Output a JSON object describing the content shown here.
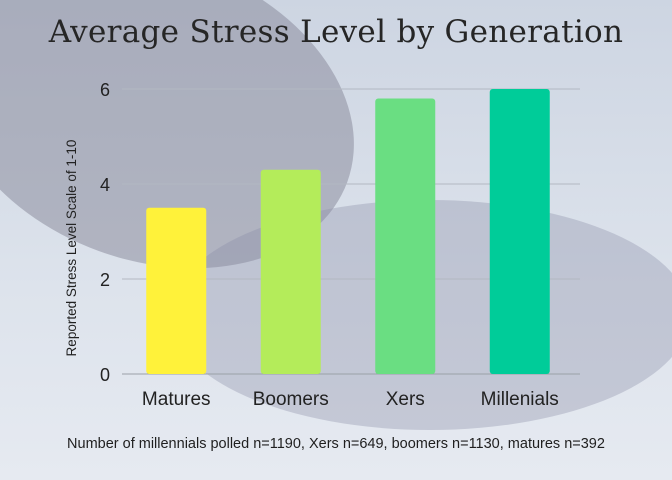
{
  "chart_data": {
    "type": "bar",
    "title": "Average Stress Level by Generation",
    "ylabel": "Reported Stress Level Scale of 1-10",
    "xlabel": "",
    "categories": [
      "Matures",
      "Boomers",
      "Xers",
      "Millenials"
    ],
    "values": [
      3.5,
      4.3,
      5.8,
      6.0
    ],
    "colors": [
      "#fff23a",
      "#b4ec5a",
      "#6ade82",
      "#00cc99"
    ],
    "ylim": [
      0,
      6
    ],
    "yticks": [
      "0",
      "2",
      "4",
      "6"
    ],
    "grid": true,
    "legend": "none",
    "footnote": "Number of millennials polled n=1190, Xers n=649, boomers n=1130, matures n=392"
  }
}
